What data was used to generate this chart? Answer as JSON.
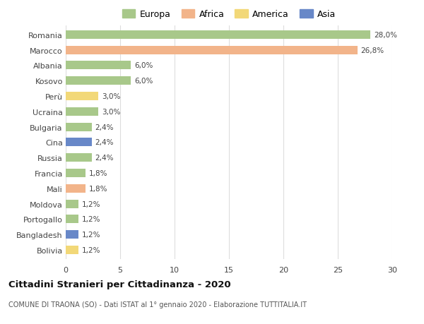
{
  "categories": [
    "Romania",
    "Marocco",
    "Albania",
    "Kosovo",
    "Perù",
    "Ucraina",
    "Bulgaria",
    "Cina",
    "Russia",
    "Francia",
    "Mali",
    "Moldova",
    "Portogallo",
    "Bangladesh",
    "Bolivia"
  ],
  "values": [
    28.0,
    26.8,
    6.0,
    6.0,
    3.0,
    3.0,
    2.4,
    2.4,
    2.4,
    1.8,
    1.8,
    1.2,
    1.2,
    1.2,
    1.2
  ],
  "labels": [
    "28,0%",
    "26,8%",
    "6,0%",
    "6,0%",
    "3,0%",
    "3,0%",
    "2,4%",
    "2,4%",
    "2,4%",
    "1,8%",
    "1,8%",
    "1,2%",
    "1,2%",
    "1,2%",
    "1,2%"
  ],
  "continents": [
    "Europa",
    "Africa",
    "Europa",
    "Europa",
    "America",
    "Europa",
    "Europa",
    "Asia",
    "Europa",
    "Europa",
    "Africa",
    "Europa",
    "Europa",
    "Asia",
    "America"
  ],
  "continent_colors": {
    "Europa": "#a8c88a",
    "Africa": "#f2b48a",
    "America": "#f2d878",
    "Asia": "#6888c8"
  },
  "legend_items": [
    "Europa",
    "Africa",
    "America",
    "Asia"
  ],
  "legend_colors": [
    "#a8c88a",
    "#f2b48a",
    "#f2d878",
    "#6888c8"
  ],
  "title": "Cittadini Stranieri per Cittadinanza - 2020",
  "subtitle": "COMUNE DI TRAONA (SO) - Dati ISTAT al 1° gennaio 2020 - Elaborazione TUTTITALIA.IT",
  "xlim": [
    0,
    30
  ],
  "xticks": [
    0,
    5,
    10,
    15,
    20,
    25,
    30
  ],
  "background_color": "#ffffff",
  "grid_color": "#dddddd",
  "bar_height": 0.55
}
